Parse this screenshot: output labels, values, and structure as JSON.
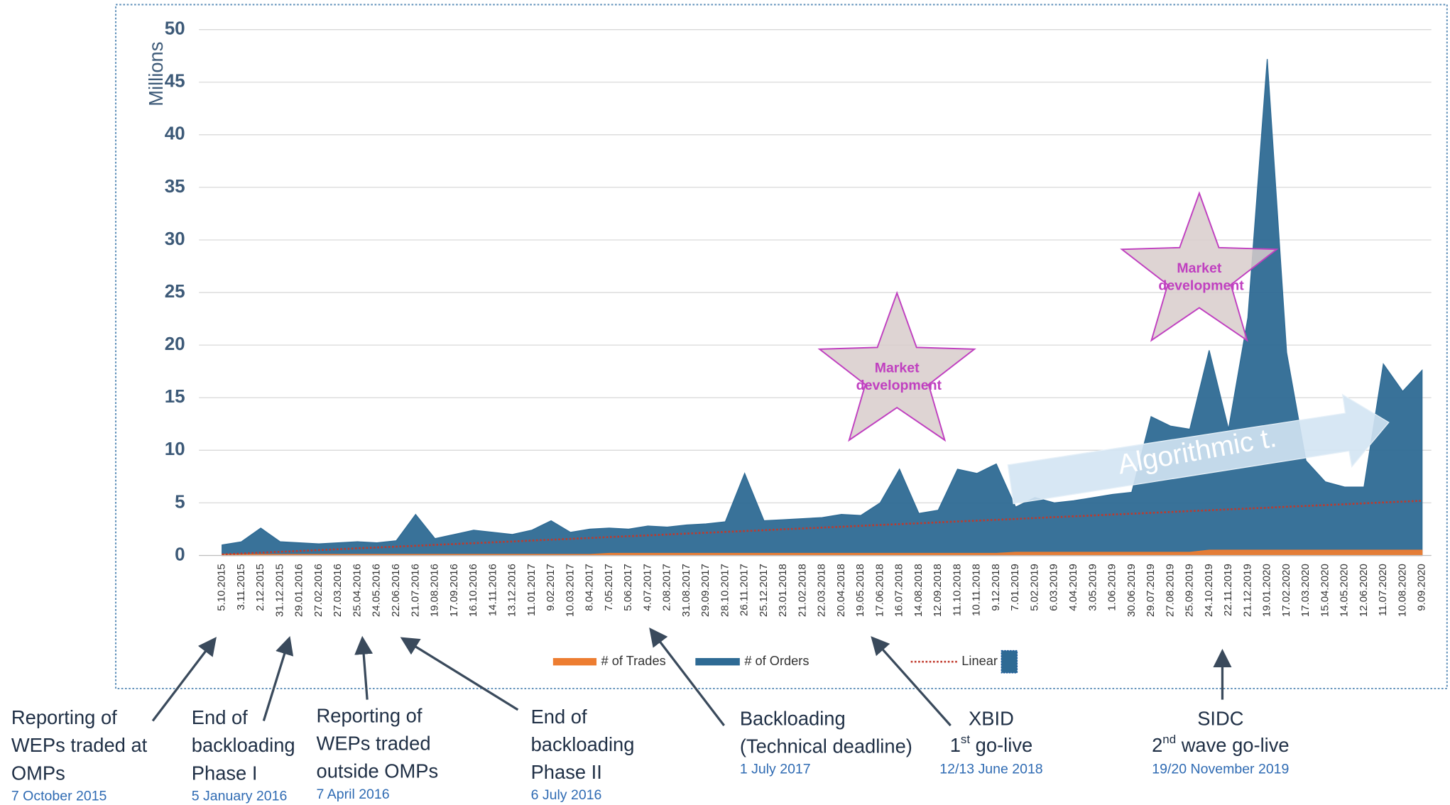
{
  "chart_data": {
    "type": "area",
    "y_axis_label": "Millions",
    "categories": [
      "5.10.2015",
      "3.11.2015",
      "2.12.2015",
      "31.12.2015",
      "29.01.2016",
      "27.02.2016",
      "27.03.2016",
      "25.04.2016",
      "24.05.2016",
      "22.06.2016",
      "21.07.2016",
      "19.08.2016",
      "17.09.2016",
      "16.10.2016",
      "14.11.2016",
      "13.12.2016",
      "11.01.2017",
      "9.02.2017",
      "10.03.2017",
      "8.04.2017",
      "7.05.2017",
      "5.06.2017",
      "4.07.2017",
      "2.08.2017",
      "31.08.2017",
      "29.09.2017",
      "28.10.2017",
      "26.11.2017",
      "25.12.2017",
      "23.01.2018",
      "21.02.2018",
      "22.03.2018",
      "20.04.2018",
      "19.05.2018",
      "17.06.2018",
      "16.07.2018",
      "14.08.2018",
      "12.09.2018",
      "11.10.2018",
      "10.11.2018",
      "9.12.2018",
      "7.01.2019",
      "5.02.2019",
      "6.03.2019",
      "4.04.2019",
      "3.05.2019",
      "1.06.2019",
      "30.06.2019",
      "29.07.2019",
      "27.08.2019",
      "25.09.2019",
      "24.10.2019",
      "22.11.2019",
      "21.12.2019",
      "19.01.2020",
      "17.02.2020",
      "17.03.2020",
      "15.04.2020",
      "14.05.2020",
      "12.06.2020",
      "11.07.2020",
      "10.08.2020",
      "9.09.2020"
    ],
    "series": [
      {
        "name": "# of Trades",
        "color": "#ed7d31",
        "kind": "area",
        "values": [
          0.1,
          0.1,
          0.1,
          0.1,
          0.1,
          0.1,
          0.1,
          0.1,
          0.1,
          0.1,
          0.1,
          0.1,
          0.1,
          0.1,
          0.1,
          0.1,
          0.1,
          0.1,
          0.1,
          0.1,
          0.2,
          0.2,
          0.2,
          0.2,
          0.2,
          0.2,
          0.2,
          0.2,
          0.2,
          0.2,
          0.2,
          0.2,
          0.2,
          0.2,
          0.2,
          0.2,
          0.2,
          0.2,
          0.2,
          0.2,
          0.2,
          0.3,
          0.3,
          0.3,
          0.3,
          0.3,
          0.3,
          0.3,
          0.3,
          0.3,
          0.3,
          0.5,
          0.5,
          0.5,
          0.5,
          0.5,
          0.5,
          0.5,
          0.5,
          0.5,
          0.5,
          0.5,
          0.5
        ]
      },
      {
        "name": "# of Orders",
        "color": "#2e6a94",
        "kind": "area",
        "values": [
          1.0,
          1.3,
          2.6,
          1.3,
          1.2,
          1.1,
          1.2,
          1.3,
          1.2,
          1.4,
          3.9,
          1.6,
          2.0,
          2.4,
          2.2,
          2.0,
          2.4,
          3.3,
          2.2,
          2.5,
          2.6,
          2.5,
          2.8,
          2.7,
          2.9,
          3.0,
          3.2,
          7.8,
          3.3,
          3.4,
          3.5,
          3.6,
          3.9,
          3.8,
          5.0,
          8.2,
          4.0,
          4.3,
          8.2,
          7.8,
          8.7,
          4.6,
          5.5,
          5.0,
          5.2,
          5.5,
          5.8,
          6.0,
          13.2,
          12.3,
          12.0,
          19.5,
          12.0,
          22.6,
          47.2,
          19.3,
          9.0,
          7.0,
          6.5,
          6.5,
          18.2,
          15.6,
          17.6
        ]
      },
      {
        "name": "Linear",
        "color": "#c0392b",
        "kind": "line",
        "values": [
          0.1,
          0.18,
          0.26,
          0.35,
          0.43,
          0.51,
          0.59,
          0.68,
          0.76,
          0.84,
          0.92,
          1.01,
          1.09,
          1.17,
          1.25,
          1.33,
          1.42,
          1.5,
          1.58,
          1.66,
          1.75,
          1.83,
          1.91,
          1.99,
          2.08,
          2.16,
          2.24,
          2.32,
          2.4,
          2.49,
          2.57,
          2.65,
          2.73,
          2.82,
          2.9,
          2.98,
          3.06,
          3.15,
          3.23,
          3.31,
          3.39,
          3.47,
          3.56,
          3.64,
          3.72,
          3.8,
          3.89,
          3.97,
          4.05,
          4.13,
          4.22,
          4.3,
          4.38,
          4.46,
          4.54,
          4.63,
          4.71,
          4.79,
          4.87,
          4.96,
          5.04,
          5.12,
          5.2
        ]
      }
    ],
    "ylim": [
      0,
      50
    ],
    "yticks": [
      0,
      5,
      10,
      15,
      20,
      25,
      30,
      35,
      40,
      45,
      50
    ],
    "grid": true,
    "legend": "bottom",
    "stars": [
      "Market development",
      "Market development"
    ],
    "arrow_label": "Algorithmic t."
  },
  "annotations": [
    {
      "lines": [
        "Reporting of",
        "WEPs traded at",
        "OMPs"
      ],
      "date": "7 October 2015"
    },
    {
      "lines": [
        "End of",
        "backloading",
        "Phase I"
      ],
      "date": "5 January 2016"
    },
    {
      "lines": [
        "Reporting of",
        "WEPs traded",
        "outside OMPs"
      ],
      "date": "7 April 2016"
    },
    {
      "lines": [
        "End of",
        "backloading",
        "Phase II"
      ],
      "date": "6 July 2016"
    },
    {
      "lines": [
        "Backloading",
        "(Technical deadline)"
      ],
      "date": "1 July 2017"
    },
    {
      "lines": [
        "XBID"
      ],
      "ordinal": "1",
      "suffix": "st",
      "rest": " go-live",
      "date": "12/13 June 2018"
    },
    {
      "lines": [
        "SIDC"
      ],
      "ordinal": "2",
      "suffix": "nd",
      "rest": " wave go-live",
      "date": "19/20 November 2019"
    }
  ]
}
